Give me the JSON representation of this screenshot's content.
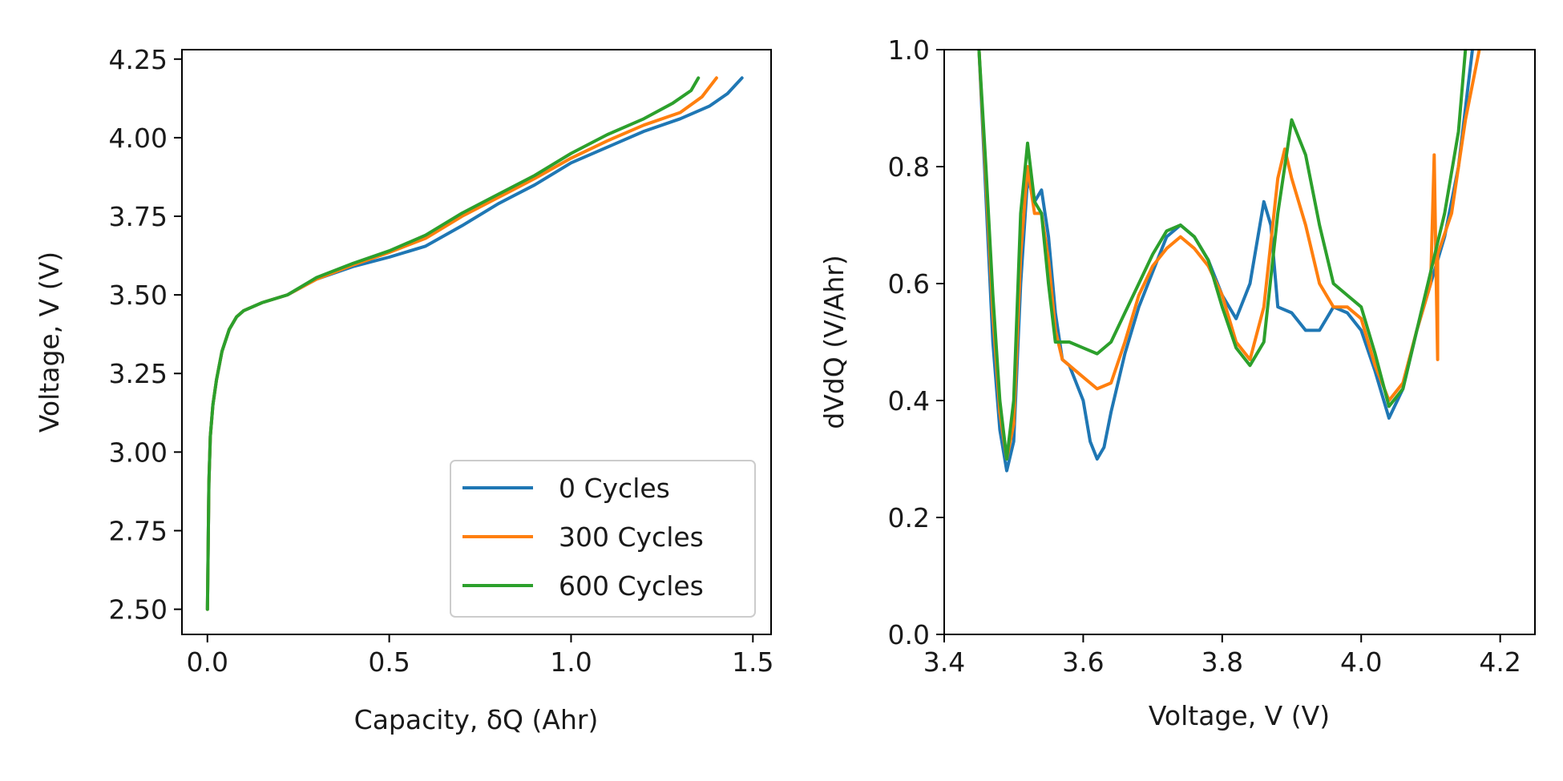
{
  "chart_data": [
    {
      "type": "line",
      "xlabel": "Capacity, δQ (Ahr)",
      "ylabel": "Voltage, V (V)",
      "xlim": [
        -0.07,
        1.55
      ],
      "ylim": [
        2.42,
        4.28
      ],
      "xticks": [
        "0.0",
        "0.5",
        "1.0",
        "1.5"
      ],
      "xtick_values": [
        0.0,
        0.5,
        1.0,
        1.5
      ],
      "yticks": [
        "2.50",
        "2.75",
        "3.00",
        "3.25",
        "3.50",
        "3.75",
        "4.00",
        "4.25"
      ],
      "ytick_values": [
        2.5,
        2.75,
        3.0,
        3.25,
        3.5,
        3.75,
        4.0,
        4.25
      ],
      "grid": false,
      "legend": "lower-right",
      "series": [
        {
          "name": "0 Cycles",
          "color": "#1f77b4",
          "points": [
            [
              0,
              2.5
            ],
            [
              0.002,
              2.7
            ],
            [
              0.004,
              2.9
            ],
            [
              0.008,
              3.05
            ],
            [
              0.015,
              3.15
            ],
            [
              0.025,
              3.23
            ],
            [
              0.04,
              3.32
            ],
            [
              0.06,
              3.39
            ],
            [
              0.08,
              3.43
            ],
            [
              0.1,
              3.45
            ],
            [
              0.15,
              3.475
            ],
            [
              0.22,
              3.5
            ],
            [
              0.3,
              3.55
            ],
            [
              0.4,
              3.59
            ],
            [
              0.5,
              3.62
            ],
            [
              0.6,
              3.655
            ],
            [
              0.7,
              3.72
            ],
            [
              0.8,
              3.79
            ],
            [
              0.9,
              3.85
            ],
            [
              1.0,
              3.92
            ],
            [
              1.1,
              3.97
            ],
            [
              1.2,
              4.02
            ],
            [
              1.3,
              4.06
            ],
            [
              1.38,
              4.1
            ],
            [
              1.43,
              4.14
            ],
            [
              1.47,
              4.19
            ]
          ]
        },
        {
          "name": "300 Cycles",
          "color": "#ff7f0e",
          "points": [
            [
              0,
              2.5
            ],
            [
              0.002,
              2.7
            ],
            [
              0.004,
              2.9
            ],
            [
              0.008,
              3.05
            ],
            [
              0.015,
              3.15
            ],
            [
              0.025,
              3.23
            ],
            [
              0.04,
              3.32
            ],
            [
              0.06,
              3.39
            ],
            [
              0.08,
              3.43
            ],
            [
              0.1,
              3.45
            ],
            [
              0.15,
              3.475
            ],
            [
              0.22,
              3.5
            ],
            [
              0.3,
              3.55
            ],
            [
              0.4,
              3.595
            ],
            [
              0.5,
              3.635
            ],
            [
              0.6,
              3.68
            ],
            [
              0.7,
              3.75
            ],
            [
              0.8,
              3.81
            ],
            [
              0.9,
              3.87
            ],
            [
              1.0,
              3.935
            ],
            [
              1.1,
              3.99
            ],
            [
              1.2,
              4.04
            ],
            [
              1.3,
              4.08
            ],
            [
              1.36,
              4.13
            ],
            [
              1.4,
              4.19
            ]
          ]
        },
        {
          "name": "600 Cycles",
          "color": "#2ca02c",
          "points": [
            [
              0,
              2.5
            ],
            [
              0.002,
              2.7
            ],
            [
              0.004,
              2.9
            ],
            [
              0.008,
              3.05
            ],
            [
              0.015,
              3.15
            ],
            [
              0.025,
              3.23
            ],
            [
              0.04,
              3.32
            ],
            [
              0.06,
              3.39
            ],
            [
              0.08,
              3.43
            ],
            [
              0.1,
              3.45
            ],
            [
              0.15,
              3.475
            ],
            [
              0.22,
              3.5
            ],
            [
              0.3,
              3.555
            ],
            [
              0.4,
              3.6
            ],
            [
              0.5,
              3.64
            ],
            [
              0.6,
              3.69
            ],
            [
              0.7,
              3.76
            ],
            [
              0.8,
              3.82
            ],
            [
              0.9,
              3.88
            ],
            [
              1.0,
              3.95
            ],
            [
              1.1,
              4.01
            ],
            [
              1.2,
              4.06
            ],
            [
              1.28,
              4.11
            ],
            [
              1.33,
              4.15
            ],
            [
              1.35,
              4.19
            ]
          ]
        }
      ]
    },
    {
      "type": "line",
      "xlabel": "Voltage, V (V)",
      "ylabel": "dVdQ (V/Ahr)",
      "xlim": [
        3.4,
        4.25
      ],
      "ylim": [
        0.0,
        1.0
      ],
      "xticks": [
        "3.4",
        "3.6",
        "3.8",
        "4.0",
        "4.2"
      ],
      "xtick_values": [
        3.4,
        3.6,
        3.8,
        4.0,
        4.2
      ],
      "yticks": [
        "0.0",
        "0.2",
        "0.4",
        "0.6",
        "0.8",
        "1.0"
      ],
      "ytick_values": [
        0.0,
        0.2,
        0.4,
        0.6,
        0.8,
        1.0
      ],
      "grid": false,
      "series": [
        {
          "name": "0 Cycles",
          "color": "#1f77b4",
          "points": [
            [
              3.45,
              1.0
            ],
            [
              3.46,
              0.75
            ],
            [
              3.47,
              0.5
            ],
            [
              3.48,
              0.35
            ],
            [
              3.49,
              0.28
            ],
            [
              3.5,
              0.33
            ],
            [
              3.51,
              0.6
            ],
            [
              3.52,
              0.78
            ],
            [
              3.53,
              0.74
            ],
            [
              3.54,
              0.76
            ],
            [
              3.55,
              0.68
            ],
            [
              3.56,
              0.55
            ],
            [
              3.57,
              0.47
            ],
            [
              3.58,
              0.46
            ],
            [
              3.6,
              0.4
            ],
            [
              3.61,
              0.33
            ],
            [
              3.62,
              0.3
            ],
            [
              3.63,
              0.32
            ],
            [
              3.64,
              0.38
            ],
            [
              3.66,
              0.48
            ],
            [
              3.68,
              0.56
            ],
            [
              3.7,
              0.62
            ],
            [
              3.72,
              0.68
            ],
            [
              3.74,
              0.7
            ],
            [
              3.76,
              0.68
            ],
            [
              3.78,
              0.64
            ],
            [
              3.8,
              0.58
            ],
            [
              3.82,
              0.54
            ],
            [
              3.84,
              0.6
            ],
            [
              3.86,
              0.74
            ],
            [
              3.87,
              0.7
            ],
            [
              3.88,
              0.56
            ],
            [
              3.9,
              0.55
            ],
            [
              3.92,
              0.52
            ],
            [
              3.94,
              0.52
            ],
            [
              3.96,
              0.56
            ],
            [
              3.98,
              0.55
            ],
            [
              4.0,
              0.52
            ],
            [
              4.02,
              0.45
            ],
            [
              4.04,
              0.37
            ],
            [
              4.06,
              0.42
            ],
            [
              4.08,
              0.52
            ],
            [
              4.1,
              0.6
            ],
            [
              4.12,
              0.68
            ],
            [
              4.14,
              0.8
            ],
            [
              4.16,
              1.0
            ]
          ]
        },
        {
          "name": "300 Cycles",
          "color": "#ff7f0e",
          "points": [
            [
              3.45,
              1.0
            ],
            [
              3.46,
              0.78
            ],
            [
              3.47,
              0.55
            ],
            [
              3.48,
              0.38
            ],
            [
              3.49,
              0.3
            ],
            [
              3.5,
              0.36
            ],
            [
              3.51,
              0.65
            ],
            [
              3.52,
              0.8
            ],
            [
              3.53,
              0.72
            ],
            [
              3.54,
              0.72
            ],
            [
              3.55,
              0.64
            ],
            [
              3.56,
              0.52
            ],
            [
              3.57,
              0.47
            ],
            [
              3.58,
              0.46
            ],
            [
              3.6,
              0.44
            ],
            [
              3.62,
              0.42
            ],
            [
              3.64,
              0.43
            ],
            [
              3.66,
              0.5
            ],
            [
              3.68,
              0.58
            ],
            [
              3.7,
              0.63
            ],
            [
              3.72,
              0.66
            ],
            [
              3.74,
              0.68
            ],
            [
              3.76,
              0.66
            ],
            [
              3.78,
              0.63
            ],
            [
              3.8,
              0.58
            ],
            [
              3.82,
              0.5
            ],
            [
              3.84,
              0.47
            ],
            [
              3.86,
              0.56
            ],
            [
              3.88,
              0.78
            ],
            [
              3.89,
              0.83
            ],
            [
              3.9,
              0.78
            ],
            [
              3.92,
              0.7
            ],
            [
              3.94,
              0.6
            ],
            [
              3.96,
              0.56
            ],
            [
              3.98,
              0.56
            ],
            [
              4.0,
              0.54
            ],
            [
              4.02,
              0.46
            ],
            [
              4.04,
              0.4
            ],
            [
              4.06,
              0.43
            ],
            [
              4.08,
              0.52
            ],
            [
              4.1,
              0.6
            ],
            [
              4.105,
              0.82
            ],
            [
              4.108,
              0.6
            ],
            [
              4.11,
              0.47
            ],
            [
              4.11,
              0.65
            ],
            [
              4.13,
              0.72
            ],
            [
              4.15,
              0.88
            ],
            [
              4.17,
              1.0
            ]
          ]
        },
        {
          "name": "600 Cycles",
          "color": "#2ca02c",
          "points": [
            [
              3.45,
              1.0
            ],
            [
              3.46,
              0.8
            ],
            [
              3.47,
              0.58
            ],
            [
              3.48,
              0.4
            ],
            [
              3.49,
              0.3
            ],
            [
              3.5,
              0.4
            ],
            [
              3.51,
              0.72
            ],
            [
              3.52,
              0.84
            ],
            [
              3.53,
              0.74
            ],
            [
              3.54,
              0.72
            ],
            [
              3.55,
              0.6
            ],
            [
              3.56,
              0.5
            ],
            [
              3.58,
              0.5
            ],
            [
              3.6,
              0.49
            ],
            [
              3.62,
              0.48
            ],
            [
              3.64,
              0.5
            ],
            [
              3.66,
              0.55
            ],
            [
              3.68,
              0.6
            ],
            [
              3.7,
              0.65
            ],
            [
              3.72,
              0.69
            ],
            [
              3.74,
              0.7
            ],
            [
              3.76,
              0.68
            ],
            [
              3.78,
              0.64
            ],
            [
              3.8,
              0.56
            ],
            [
              3.82,
              0.49
            ],
            [
              3.84,
              0.46
            ],
            [
              3.86,
              0.5
            ],
            [
              3.88,
              0.72
            ],
            [
              3.9,
              0.88
            ],
            [
              3.92,
              0.82
            ],
            [
              3.94,
              0.7
            ],
            [
              3.96,
              0.6
            ],
            [
              3.98,
              0.58
            ],
            [
              4.0,
              0.56
            ],
            [
              4.02,
              0.48
            ],
            [
              4.04,
              0.39
            ],
            [
              4.06,
              0.42
            ],
            [
              4.08,
              0.52
            ],
            [
              4.1,
              0.62
            ],
            [
              4.12,
              0.72
            ],
            [
              4.14,
              0.86
            ],
            [
              4.15,
              1.0
            ]
          ]
        }
      ]
    }
  ]
}
